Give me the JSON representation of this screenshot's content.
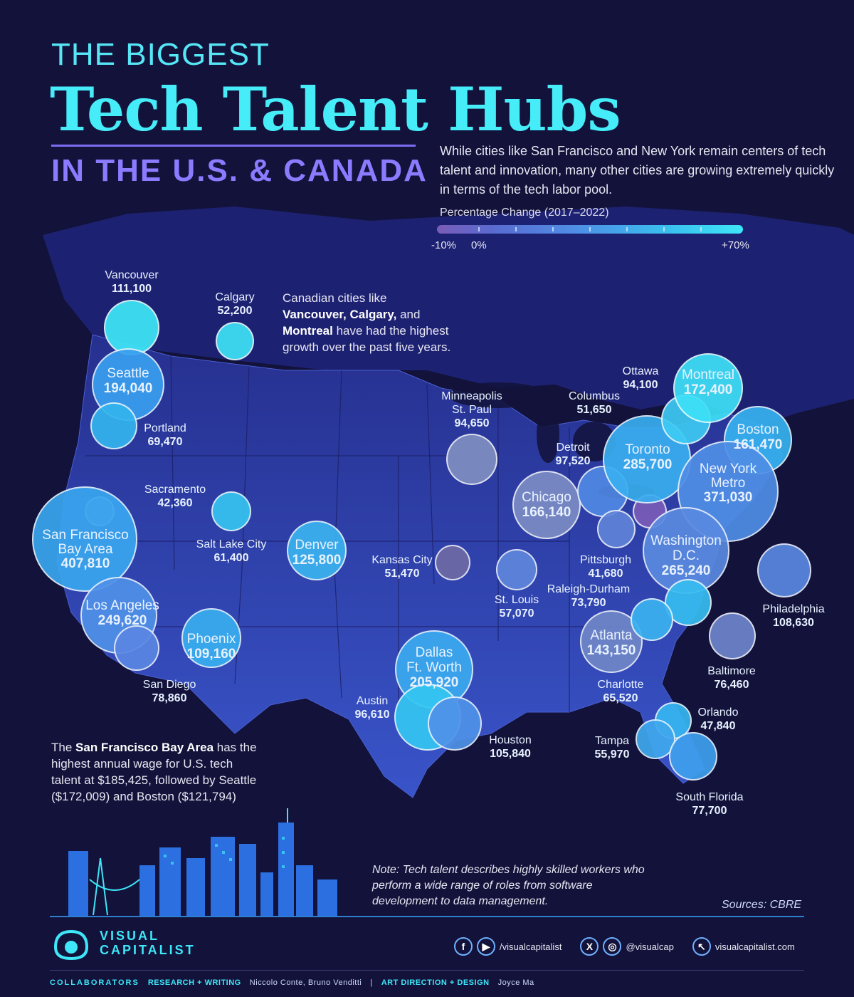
{
  "title": {
    "line1": "THE BIGGEST",
    "line2": "Tech Talent Hubs",
    "line3": "IN THE U.S. & CANADA"
  },
  "intro": "While cities like San Francisco and New York remain centers of tech talent and innovation, many other cities are growing extremely quickly in terms of the tech labor pool.",
  "legend": {
    "title": "Percentage Change (2017–2022)",
    "min_label": "-10%",
    "zero_label": "0%",
    "max_label": "+70%",
    "colors": [
      "#7a5cb8",
      "#5a6bd0",
      "#4f8ee6",
      "#39bfee",
      "#3ee6f8"
    ]
  },
  "annotations": {
    "canada_pre": "Canadian cities like ",
    "canada_b1": "Vancouver,",
    "canada_b2": "Calgary,",
    "canada_mid": " and ",
    "canada_b3": "Montreal",
    "canada_post": " have had the highest growth over the past five years.",
    "sf_pre": "The ",
    "sf_b": "San Francisco Bay Area",
    "sf_post": " has the highest annual wage for U.S. tech talent at $185,425, followed by Seattle ($172,009) and Boston ($121,794)",
    "note": "Note: Tech talent describes highly skilled workers who perform a wide range of roles from software development to data management.",
    "sources": "Sources: CBRE"
  },
  "cities": [
    {
      "id": "vancouver",
      "name": "Vancouver",
      "value": "111,100",
      "color": "#3ee8f8"
    },
    {
      "id": "calgary",
      "name": "Calgary",
      "value": "52,200",
      "color": "#3ee2f6"
    },
    {
      "id": "seattle",
      "name": "Seattle",
      "value": "194,040",
      "color": "#3a9ff0"
    },
    {
      "id": "portland",
      "name": "Portland",
      "value": "69,470",
      "color": "#33b4ee"
    },
    {
      "id": "sacramento",
      "name": "Sacramento",
      "value": "42,360",
      "color": "#6f8fd6"
    },
    {
      "id": "sf",
      "name": "San Francisco Bay Area",
      "value": "407,810",
      "color": "#3aa6f0"
    },
    {
      "id": "la",
      "name": "Los Angeles",
      "value": "249,620",
      "color": "#4f90e8"
    },
    {
      "id": "sandiego",
      "name": "San Diego",
      "value": "78,860",
      "color": "#5a86e2"
    },
    {
      "id": "saltlake",
      "name": "Salt Lake City",
      "value": "61,400",
      "color": "#36c4f0"
    },
    {
      "id": "phoenix",
      "name": "Phoenix",
      "value": "109,160",
      "color": "#39aef0"
    },
    {
      "id": "denver",
      "name": "Denver",
      "value": "125,800",
      "color": "#3ab2f0"
    },
    {
      "id": "kansas",
      "name": "Kansas City",
      "value": "51,470",
      "color": "#6e6aa6"
    },
    {
      "id": "minneapolis",
      "name": "Minneapolis St. Paul",
      "value": "94,650",
      "color": "#7f8fc2"
    },
    {
      "id": "stlouis",
      "name": "St. Louis",
      "value": "57,070",
      "color": "#5f86dc"
    },
    {
      "id": "dallas",
      "name": "Dallas Ft. Worth",
      "value": "205,920",
      "color": "#3aaaf0"
    },
    {
      "id": "austin",
      "name": "Austin",
      "value": "96,610",
      "color": "#34c6f2"
    },
    {
      "id": "houston",
      "name": "Houston",
      "value": "105,840",
      "color": "#4f92e8"
    },
    {
      "id": "chicago",
      "name": "Chicago",
      "value": "166,140",
      "color": "#7c8cc4"
    },
    {
      "id": "detroit",
      "name": "Detroit",
      "value": "97,520",
      "color": "#5088e4"
    },
    {
      "id": "columbus",
      "name": "Columbus",
      "value": "51,650",
      "color": "#5f84d8"
    },
    {
      "id": "pittsburgh",
      "name": "Pittsburgh",
      "value": "41,680",
      "color": "#7a5cb8"
    },
    {
      "id": "toronto",
      "name": "Toronto",
      "value": "285,700",
      "color": "#3aaef0"
    },
    {
      "id": "ottawa",
      "name": "Ottawa",
      "value": "94,100",
      "color": "#3ecaf4"
    },
    {
      "id": "montreal",
      "name": "Montreal",
      "value": "172,400",
      "color": "#3ee0f8"
    },
    {
      "id": "boston",
      "name": "Boston",
      "value": "161,470",
      "color": "#36b2f0"
    },
    {
      "id": "newyork",
      "name": "New York Metro",
      "value": "371,030",
      "color": "#4f8ee6"
    },
    {
      "id": "washington",
      "name": "Washington D.C.",
      "value": "265,240",
      "color": "#5a8ae0"
    },
    {
      "id": "philadelphia",
      "name": "Philadelphia",
      "value": "108,630",
      "color": "#5a88e0"
    },
    {
      "id": "baltimore",
      "name": "Baltimore",
      "value": "76,460",
      "color": "#6f86cc"
    },
    {
      "id": "raleigh",
      "name": "Raleigh-Durham",
      "value": "73,790",
      "color": "#36bdf0"
    },
    {
      "id": "atlanta",
      "name": "Atlanta",
      "value": "143,150",
      "color": "#6f86c8"
    },
    {
      "id": "charlotte",
      "name": "Charlotte",
      "value": "65,520",
      "color": "#3ab2f0"
    },
    {
      "id": "orlando",
      "name": "Orlando",
      "value": "47,840",
      "color": "#36b6f0"
    },
    {
      "id": "tampa",
      "name": "Tampa",
      "value": "55,970",
      "color": "#3fa8ee"
    },
    {
      "id": "southflorida",
      "name": "South Florida",
      "value": "77,700",
      "color": "#3fa0ee"
    }
  ],
  "footer": {
    "brand_line1": "VISUAL",
    "brand_line2": "CAPITALIST",
    "social1": "/visualcapitalist",
    "social2": "@visualcap",
    "social3": "visualcapitalist.com",
    "collab_label": "COLLABORATORS",
    "research_label": "RESEARCH + WRITING",
    "research_names": "Niccolo Conte, Bruno Venditti",
    "sep": "|",
    "design_label": "ART DIRECTION + DESIGN",
    "design_names": "Joyce Ma"
  }
}
